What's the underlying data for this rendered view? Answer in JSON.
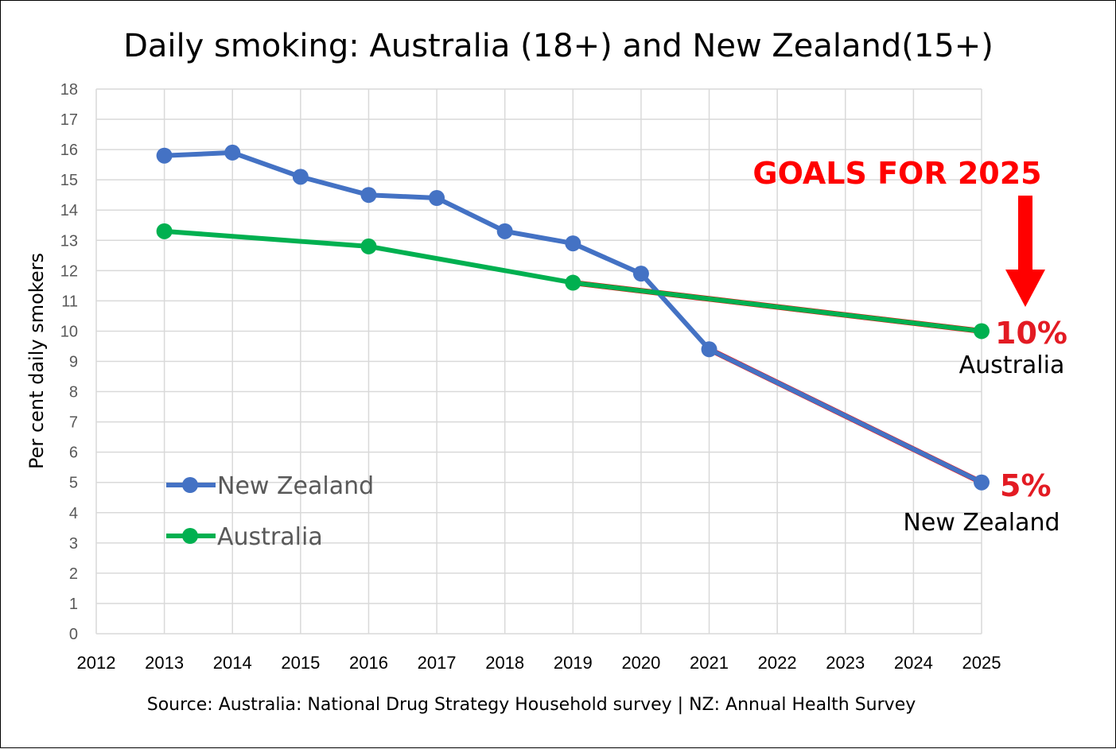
{
  "chart_data": {
    "type": "line",
    "title": "Daily smoking: Australia (18+) and New Zealand(15+)",
    "ylabel": "Per cent daily smokers",
    "xlabel": "",
    "xlim": [
      2012,
      2025
    ],
    "ylim": [
      0,
      18
    ],
    "x_ticks": [
      "2012",
      "2013",
      "2014",
      "2015",
      "2016",
      "2017",
      "2018",
      "2019",
      "2020",
      "2021",
      "2022",
      "2023",
      "2024",
      "2025"
    ],
    "y_ticks": [
      "0",
      "1",
      "2",
      "3",
      "4",
      "5",
      "6",
      "7",
      "8",
      "9",
      "10",
      "11",
      "12",
      "13",
      "14",
      "15",
      "16",
      "17",
      "18"
    ],
    "grid": true,
    "legend_placement": "lower-left",
    "series": [
      {
        "name": "New Zealand",
        "color": "#4472c4",
        "points": [
          {
            "x": 2013,
            "y": 15.8
          },
          {
            "x": 2014,
            "y": 15.9
          },
          {
            "x": 2015,
            "y": 15.1
          },
          {
            "x": 2016,
            "y": 14.5
          },
          {
            "x": 2017,
            "y": 14.4
          },
          {
            "x": 2018,
            "y": 13.3
          },
          {
            "x": 2019,
            "y": 12.9
          },
          {
            "x": 2020,
            "y": 11.9
          },
          {
            "x": 2021,
            "y": 9.4
          },
          {
            "x": 2025,
            "y": 5.0
          }
        ]
      },
      {
        "name": "Australia",
        "color": "#00b050",
        "points": [
          {
            "x": 2013,
            "y": 13.3
          },
          {
            "x": 2016,
            "y": 12.8
          },
          {
            "x": 2019,
            "y": 11.6
          },
          {
            "x": 2025,
            "y": 10.0
          }
        ]
      }
    ],
    "goal_lines": [
      {
        "from": {
          "x": 2019,
          "y": 11.6
        },
        "to": {
          "x": 2025,
          "y": 10.0
        },
        "color": "#ff0000"
      },
      {
        "from": {
          "x": 2021,
          "y": 9.4
        },
        "to": {
          "x": 2025,
          "y": 5.0
        },
        "color": "#ff0000"
      }
    ],
    "annotations": {
      "goals_title": "GOALS FOR 2025",
      "australia_goal": "10%",
      "australia_label": "Australia",
      "nz_goal": "5%",
      "nz_label": "New Zealand"
    },
    "source": "Source: Australia: National Drug Strategy Household survey | NZ: Annual Health Survey"
  }
}
